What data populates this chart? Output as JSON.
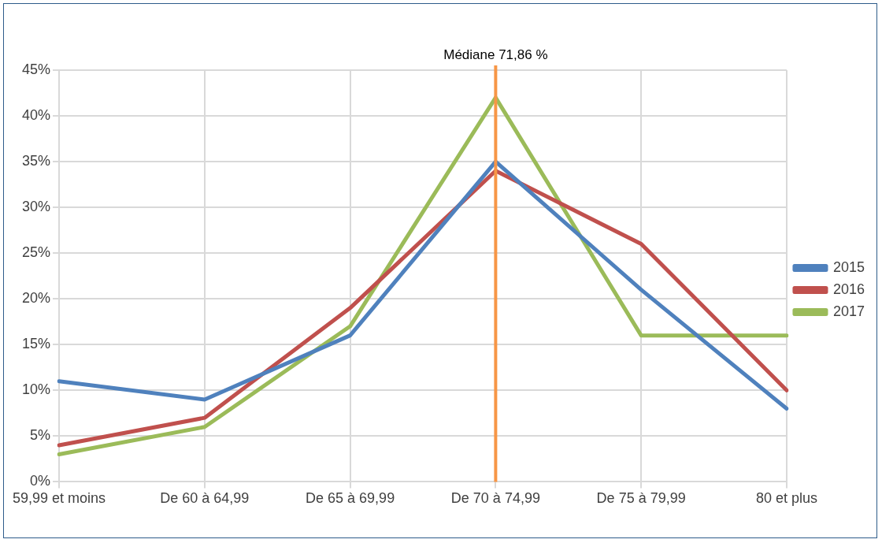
{
  "chart_data": {
    "type": "line",
    "categories": [
      "59,99 et moins",
      "De 60 à 64,99",
      "De 65 à 69,99",
      "De 70 à 74,99",
      "De 75 à 79,99",
      "80 et plus"
    ],
    "series": [
      {
        "name": "2015",
        "color": "#4f81bd",
        "values": [
          11,
          9,
          16,
          35,
          21,
          8
        ]
      },
      {
        "name": "2016",
        "color": "#c0504d",
        "values": [
          4,
          7,
          19,
          34,
          26,
          10
        ]
      },
      {
        "name": "2017",
        "color": "#9bbb59",
        "values": [
          3,
          6,
          17,
          42,
          16,
          16
        ]
      }
    ],
    "ylim": [
      0,
      45
    ],
    "yticks": [
      {
        "value": 0,
        "label": "0%"
      },
      {
        "value": 5,
        "label": "5%"
      },
      {
        "value": 10,
        "label": "10%"
      },
      {
        "value": 15,
        "label": "15%"
      },
      {
        "value": 20,
        "label": "20%"
      },
      {
        "value": 25,
        "label": "25%"
      },
      {
        "value": 30,
        "label": "30%"
      },
      {
        "value": 35,
        "label": "35%"
      },
      {
        "value": 40,
        "label": "40%"
      },
      {
        "value": 45,
        "label": "45%"
      }
    ],
    "ref_lines": [
      {
        "axis": "x",
        "value": "De 70 à 74,99",
        "label": "Médiane 71,86 %",
        "color": "#f79646"
      }
    ],
    "grid": true,
    "legend": "right",
    "marker": "none",
    "line_style": "solid"
  }
}
